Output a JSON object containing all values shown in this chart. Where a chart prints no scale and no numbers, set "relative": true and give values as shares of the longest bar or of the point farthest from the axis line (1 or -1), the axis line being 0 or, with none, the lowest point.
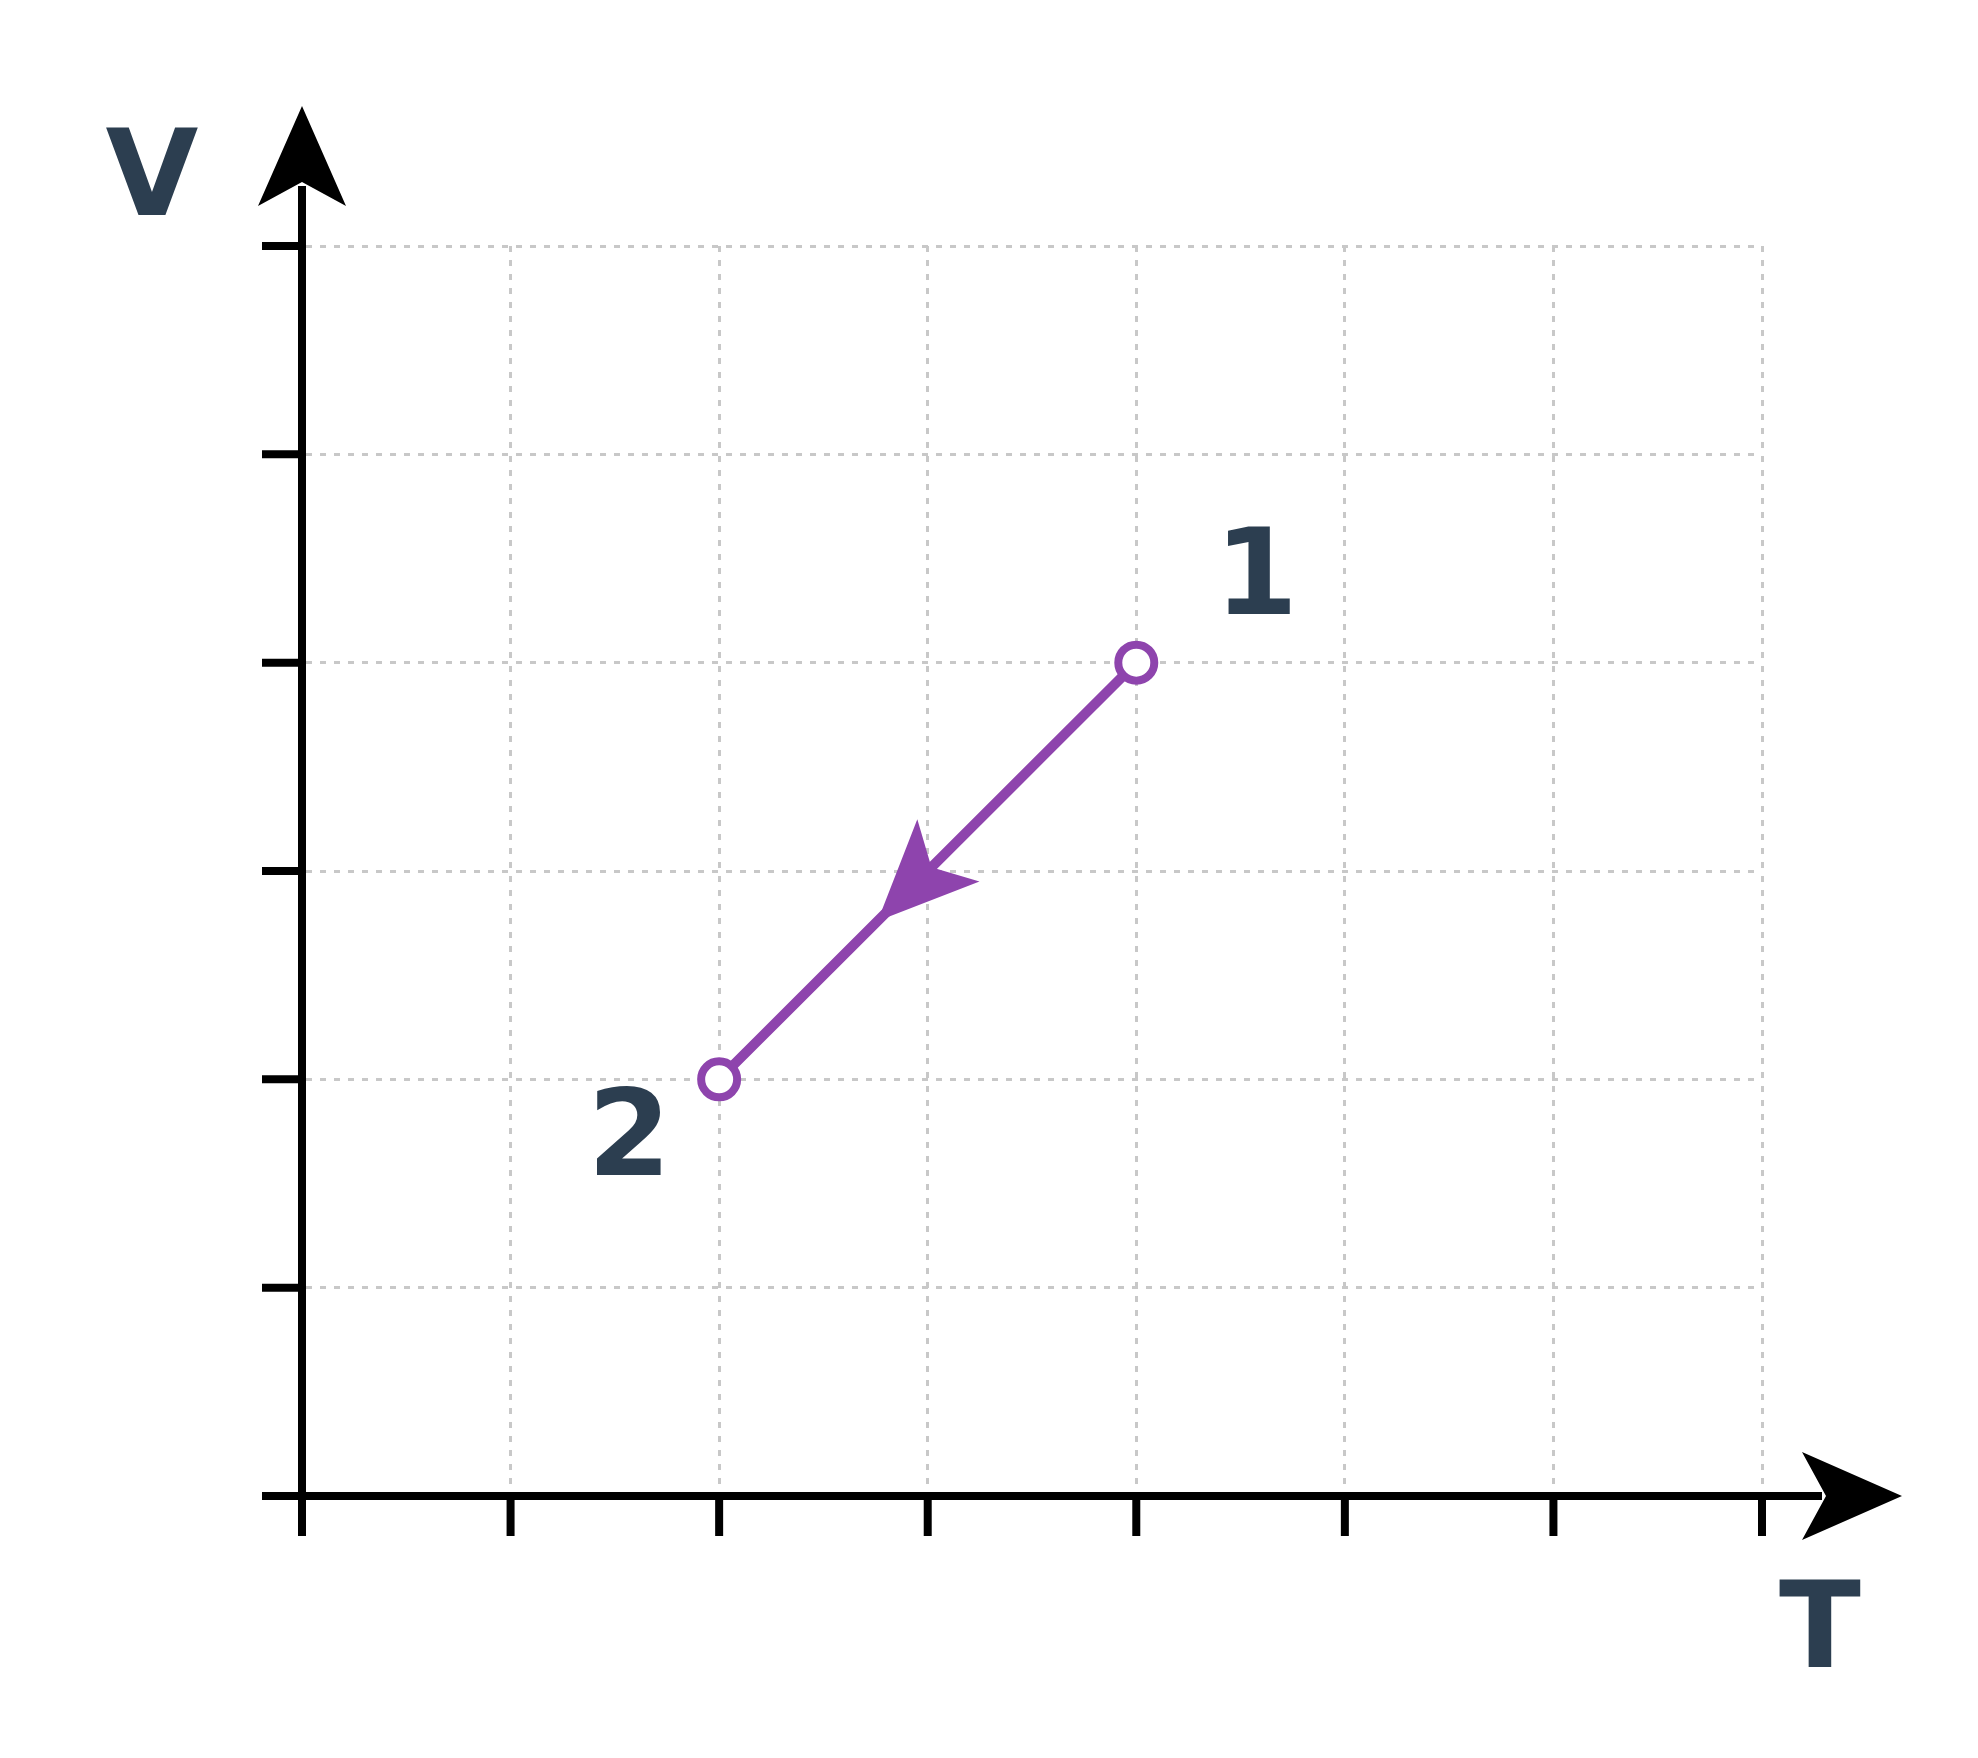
{
  "chart_data": {
    "type": "line",
    "relative": true,
    "xlabel": "T",
    "ylabel": "V",
    "categories": [
      null,
      null,
      null,
      null,
      null,
      null,
      null,
      null
    ],
    "values": [
      null,
      null,
      0.5,
      null,
      1,
      null,
      null,
      null
    ],
    "color": "#8e44ad",
    "marker": "circle",
    "line_style": "solid",
    "grid": true,
    "annotations": [
      "1",
      "2"
    ]
  }
}
